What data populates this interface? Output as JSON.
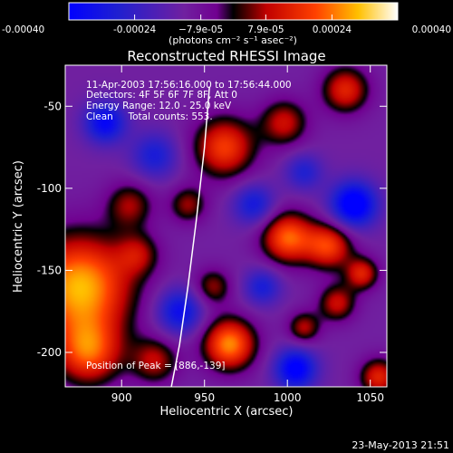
{
  "chart_data": {
    "type": "heatmap",
    "title": "Reconstructed RHESSI Image",
    "xlabel": "Heliocentric X (arcsec)",
    "ylabel": "Heliocentric Y (arcsec)",
    "xlim": [
      866,
      1060
    ],
    "ylim": [
      -221,
      -25
    ],
    "x_ticks": [
      900,
      950,
      1000,
      1050
    ],
    "y_ticks": [
      -50,
      -100,
      -150,
      -200
    ],
    "colorbar": {
      "range": [
        -0.0004,
        0.0004
      ],
      "tick_values": [
        -0.0004,
        -0.00024,
        -7.9e-05,
        7.9e-05,
        0.00024,
        0.0004
      ],
      "tick_labels": [
        "-0.00040",
        "-0.00024",
        "−7.9e-05",
        "7.9e-05",
        "0.00024",
        "0.00040"
      ],
      "unit_label": "(photons cm⁻² s⁻¹ asec⁻²)"
    },
    "info_lines": [
      "11-Apr-2003 17:56:16.000 to 17:56:44.000",
      "Detectors: 4F 5F 6F 7F 8F, Att 0",
      "Energy Range: 12.0 - 25.0 keV",
      "Clean     Total counts: 553."
    ],
    "peak_label": "Position of Peak = [886,-139]",
    "peak": [
      886,
      -139
    ],
    "limb_curve": {
      "x": [
        930,
        935,
        940,
        945,
        950,
        953
      ],
      "y": [
        -221,
        -195,
        -160,
        -120,
        -75,
        -38
      ]
    },
    "blobs": [
      {
        "x": 875,
        "y": -160,
        "sigma": 22,
        "amp": 0.00042
      },
      {
        "x": 880,
        "y": -200,
        "sigma": 14,
        "amp": 0.0003
      },
      {
        "x": 905,
        "y": -110,
        "sigma": 10,
        "amp": 0.00018
      },
      {
        "x": 910,
        "y": -140,
        "sigma": 9,
        "amp": 0.00016
      },
      {
        "x": 920,
        "y": -205,
        "sigma": 10,
        "amp": 0.0002
      },
      {
        "x": 955,
        "y": -160,
        "sigma": 8,
        "amp": 0.00018
      },
      {
        "x": 940,
        "y": -110,
        "sigma": 8,
        "amp": 0.00018
      },
      {
        "x": 962,
        "y": -75,
        "sigma": 13,
        "amp": 0.0003
      },
      {
        "x": 998,
        "y": -60,
        "sigma": 10,
        "amp": 0.00022
      },
      {
        "x": 965,
        "y": -195,
        "sigma": 11,
        "amp": 0.00038
      },
      {
        "x": 1000,
        "y": -130,
        "sigma": 11,
        "amp": 0.00034
      },
      {
        "x": 1025,
        "y": -135,
        "sigma": 10,
        "amp": 0.0003
      },
      {
        "x": 1045,
        "y": -152,
        "sigma": 7,
        "amp": 0.00025
      },
      {
        "x": 1030,
        "y": -170,
        "sigma": 8,
        "amp": 0.00022
      },
      {
        "x": 1010,
        "y": -185,
        "sigma": 7,
        "amp": 0.0002
      },
      {
        "x": 1035,
        "y": -40,
        "sigma": 10,
        "amp": 0.00026
      },
      {
        "x": 1055,
        "y": -215,
        "sigma": 8,
        "amp": 0.00026
      },
      {
        "x": 890,
        "y": -60,
        "sigma": 9,
        "amp": -0.00026
      },
      {
        "x": 935,
        "y": -175,
        "sigma": 10,
        "amp": -0.00024
      },
      {
        "x": 920,
        "y": -80,
        "sigma": 10,
        "amp": -0.00018
      },
      {
        "x": 980,
        "y": -110,
        "sigma": 9,
        "amp": -0.0002
      },
      {
        "x": 1040,
        "y": -110,
        "sigma": 10,
        "amp": -0.00034
      },
      {
        "x": 1005,
        "y": -210,
        "sigma": 9,
        "amp": -0.0003
      },
      {
        "x": 985,
        "y": -160,
        "sigma": 8,
        "amp": -0.00018
      },
      {
        "x": 1010,
        "y": -90,
        "sigma": 8,
        "amp": -0.00016
      }
    ]
  },
  "timestamp": "23-May-2013 21:51"
}
